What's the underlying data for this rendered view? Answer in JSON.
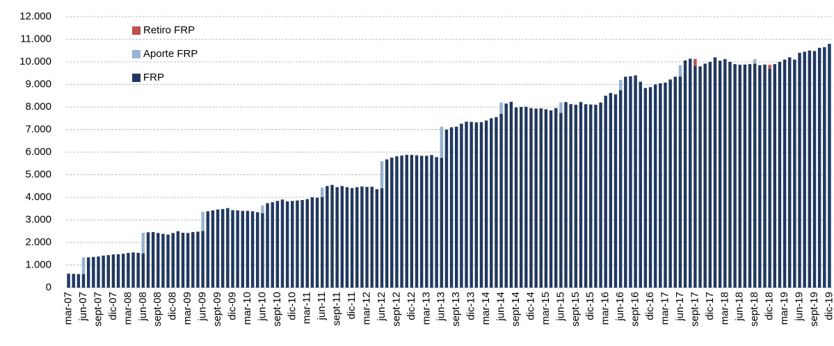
{
  "chart_data": {
    "type": "stacked_bar",
    "categories": [
      "mar-07",
      null,
      null,
      "jun-07",
      null,
      null,
      "sept-07",
      null,
      null,
      "dic-07",
      null,
      null,
      "mar-08",
      null,
      null,
      "jun-08",
      null,
      null,
      "sept-08",
      null,
      null,
      "dic-08",
      null,
      null,
      "mar-09",
      null,
      null,
      "jun-09",
      null,
      null,
      "sept-09",
      null,
      null,
      "dic-09",
      null,
      null,
      "mar-10",
      null,
      null,
      "jun-10",
      null,
      null,
      "sept-10",
      null,
      null,
      "dic-10",
      null,
      null,
      "mar-11",
      null,
      null,
      "jun-11",
      null,
      null,
      "sept-11",
      null,
      null,
      "dic-11",
      null,
      null,
      "mar-12",
      null,
      null,
      "jun-12",
      null,
      null,
      "sept-12",
      null,
      null,
      "dic-12",
      null,
      null,
      "mar-13",
      null,
      null,
      "jun-13",
      null,
      null,
      "sept-13",
      null,
      null,
      "dic-13",
      null,
      null,
      "mar-14",
      null,
      null,
      "jun-14",
      null,
      null,
      "sept-14",
      null,
      null,
      "dic-14",
      null,
      null,
      "mar-15",
      null,
      null,
      "jun-15",
      null,
      null,
      "sept-15",
      null,
      null,
      "dic-15",
      null,
      null,
      "mar-16",
      null,
      null,
      "jun-16",
      null,
      null,
      "sept-16",
      null,
      null,
      "dic-16",
      null,
      null,
      "mar-17",
      null,
      null,
      "jun-17",
      null,
      null,
      "sept-17",
      null,
      null,
      "dic-17",
      null,
      null,
      "mar-18",
      null,
      null,
      "jun-18",
      null,
      null,
      "sept-18",
      null,
      null,
      "dic-18",
      null,
      null,
      "mar-19",
      null,
      null,
      "jun-19",
      null,
      null,
      "sept-19",
      null,
      null,
      "dic-19"
    ],
    "series": [
      {
        "name": "FRP",
        "color": "#1f3864",
        "values": [
          620,
          610,
          600,
          600,
          1340,
          1360,
          1380,
          1420,
          1440,
          1470,
          1480,
          1500,
          1540,
          1560,
          1540,
          1520,
          2450,
          2460,
          2420,
          2380,
          2350,
          2420,
          2500,
          2430,
          2420,
          2460,
          2480,
          2510,
          3380,
          3420,
          3460,
          3480,
          3520,
          3430,
          3420,
          3400,
          3400,
          3380,
          3340,
          3300,
          3740,
          3780,
          3840,
          3900,
          3820,
          3840,
          3860,
          3880,
          3920,
          4000,
          3980,
          4010,
          4500,
          4550,
          4450,
          4500,
          4450,
          4410,
          4450,
          4480,
          4460,
          4470,
          4360,
          4400,
          5680,
          5760,
          5820,
          5850,
          5880,
          5880,
          5860,
          5840,
          5840,
          5870,
          5780,
          5750,
          7000,
          7100,
          7130,
          7260,
          7350,
          7340,
          7320,
          7330,
          7400,
          7500,
          7550,
          7700,
          8150,
          8230,
          7980,
          8000,
          8010,
          7950,
          7930,
          7940,
          7900,
          7850,
          7950,
          7740,
          8220,
          8130,
          8100,
          8220,
          8120,
          8110,
          8100,
          8200,
          8500,
          8620,
          8560,
          8740,
          9340,
          9360,
          9400,
          9120,
          8840,
          8880,
          9000,
          9050,
          9080,
          9220,
          9340,
          9350,
          10060,
          10140,
          9820,
          9800,
          9920,
          10000,
          10200,
          10050,
          10120,
          10000,
          9900,
          9870,
          9880,
          9900,
          9920,
          9850,
          9880,
          9700,
          9900,
          10000,
          10100,
          10200,
          10100,
          10400,
          10450,
          10500,
          10480,
          10620,
          10650,
          10800
        ]
      },
      {
        "name": "Aporte FRP",
        "color": "#95b3d7",
        "values": [
          null,
          null,
          null,
          740,
          null,
          null,
          null,
          null,
          null,
          null,
          null,
          null,
          null,
          null,
          null,
          910,
          null,
          null,
          null,
          null,
          null,
          null,
          null,
          null,
          null,
          null,
          null,
          840,
          null,
          null,
          null,
          null,
          null,
          null,
          null,
          null,
          null,
          null,
          null,
          340,
          null,
          null,
          null,
          null,
          null,
          null,
          null,
          null,
          null,
          null,
          null,
          420,
          null,
          null,
          null,
          null,
          null,
          null,
          null,
          null,
          null,
          null,
          null,
          1200,
          null,
          null,
          null,
          null,
          null,
          null,
          null,
          null,
          null,
          null,
          null,
          1380,
          null,
          null,
          null,
          null,
          null,
          null,
          null,
          null,
          null,
          null,
          null,
          500,
          null,
          null,
          null,
          null,
          null,
          null,
          null,
          null,
          null,
          null,
          null,
          460,
          null,
          null,
          null,
          null,
          null,
          null,
          null,
          null,
          null,
          null,
          null,
          460,
          null,
          null,
          null,
          null,
          null,
          null,
          null,
          null,
          null,
          null,
          null,
          500,
          null,
          null,
          null,
          null,
          null,
          null,
          null,
          null,
          null,
          null,
          null,
          null,
          null,
          null,
          200,
          null,
          null,
          null,
          null,
          null,
          null,
          null,
          null,
          null,
          null,
          null,
          null,
          null,
          null,
          null
        ]
      },
      {
        "name": "Retiro FRP",
        "color": "#c0504d",
        "values": [
          null,
          null,
          null,
          null,
          null,
          null,
          null,
          null,
          null,
          null,
          null,
          null,
          null,
          null,
          null,
          null,
          null,
          null,
          null,
          null,
          null,
          null,
          null,
          null,
          null,
          null,
          null,
          null,
          null,
          null,
          null,
          null,
          null,
          null,
          null,
          null,
          null,
          null,
          null,
          null,
          null,
          null,
          null,
          null,
          null,
          null,
          null,
          null,
          null,
          null,
          null,
          null,
          null,
          null,
          null,
          null,
          null,
          null,
          null,
          null,
          null,
          null,
          null,
          null,
          null,
          null,
          null,
          null,
          null,
          null,
          null,
          null,
          null,
          null,
          null,
          null,
          null,
          null,
          null,
          null,
          null,
          null,
          null,
          null,
          null,
          null,
          null,
          null,
          null,
          null,
          null,
          null,
          null,
          null,
          null,
          null,
          null,
          null,
          null,
          null,
          null,
          null,
          null,
          null,
          null,
          null,
          null,
          null,
          null,
          null,
          null,
          null,
          null,
          null,
          null,
          null,
          null,
          null,
          null,
          null,
          null,
          null,
          null,
          null,
          null,
          null,
          310,
          null,
          null,
          null,
          null,
          null,
          null,
          null,
          null,
          null,
          null,
          null,
          null,
          null,
          null,
          170,
          null,
          null,
          null,
          null,
          null,
          null,
          null,
          null,
          null,
          null,
          null,
          null
        ]
      }
    ],
    "ylim": [
      0,
      12000
    ],
    "yticks": [
      0,
      {
        "value": 1000,
        "label": "1.000"
      },
      {
        "value": 2000,
        "label": "2.000"
      },
      {
        "value": 3000,
        "label": "3.000"
      },
      {
        "value": 4000,
        "label": "4.000"
      },
      {
        "value": 5000,
        "label": "5.000"
      },
      {
        "value": 6000,
        "label": "6.000"
      },
      {
        "value": 7000,
        "label": "7.000"
      },
      {
        "value": 8000,
        "label": "8.000"
      },
      {
        "value": 9000,
        "label": "9.000"
      },
      {
        "value": 10000,
        "label": "10.000"
      },
      {
        "value": 11000,
        "label": "11.000"
      },
      {
        "value": 12000,
        "label": "12.000"
      }
    ],
    "grid": true,
    "legend": "upper left"
  }
}
